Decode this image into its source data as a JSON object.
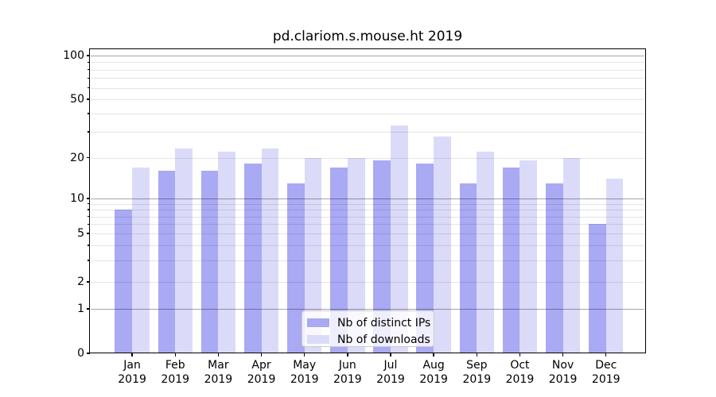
{
  "title": "pd.clariom.s.mouse.ht 2019",
  "chart_data": {
    "type": "bar",
    "title": "pd.clariom.s.mouse.ht 2019",
    "scale": "pseudo-log",
    "grid": true,
    "legend_position": "lower center",
    "year": "2019",
    "categories": [
      "Jan",
      "Feb",
      "Mar",
      "Apr",
      "May",
      "Jun",
      "Jul",
      "Aug",
      "Sep",
      "Oct",
      "Nov",
      "Dec"
    ],
    "series": [
      {
        "name": "Nb of distinct IPs",
        "color": "#a9a9f4",
        "values": [
          8,
          16,
          16,
          18,
          13,
          17,
          19,
          18,
          13,
          17,
          13,
          6
        ]
      },
      {
        "name": "Nb of downloads",
        "color": "#dbdbf9",
        "values": [
          17,
          23,
          22,
          23,
          20,
          20,
          33,
          28,
          22,
          19,
          20,
          14
        ]
      }
    ],
    "yticks": [
      0,
      1,
      2,
      5,
      10,
      20,
      50,
      100
    ],
    "minor_grid_values": [
      2,
      3,
      4,
      5,
      6,
      7,
      8,
      9,
      20,
      30,
      40,
      50,
      60,
      70,
      80,
      90
    ],
    "major_grid_values": [
      1,
      10,
      100
    ],
    "ylim": [
      0,
      112
    ]
  },
  "colors": {
    "background": "#ffffff",
    "major_grid": "#a6a6a6",
    "minor_grid": "#e5e5e5",
    "axis": "#000000",
    "legend_border": "#cccccc"
  }
}
